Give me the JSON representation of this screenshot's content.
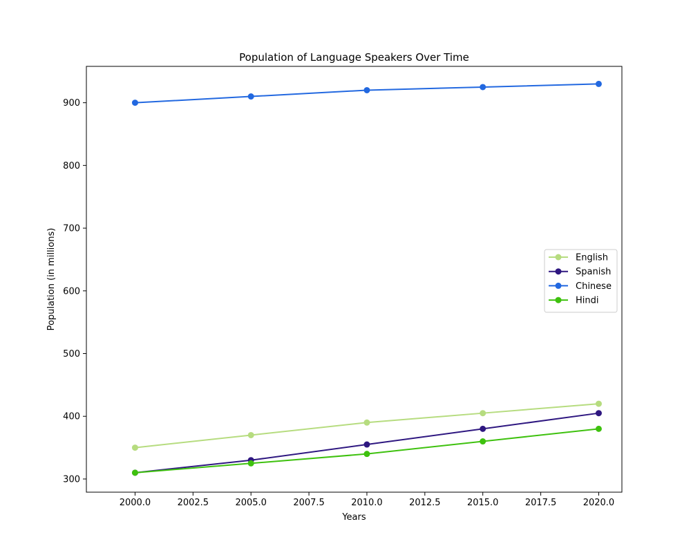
{
  "chart_data": {
    "type": "line",
    "title": "Population of Language Speakers Over Time",
    "xlabel": "Years",
    "ylabel": "Population (in millions)",
    "x": [
      2000,
      2005,
      2010,
      2015,
      2020
    ],
    "xlim": [
      1997.9,
      2021.0
    ],
    "ylim": [
      279,
      958
    ],
    "xticks": [
      "2000.0",
      "2002.5",
      "2005.0",
      "2007.5",
      "2010.0",
      "2012.5",
      "2015.0",
      "2017.5",
      "2020.0"
    ],
    "yticks": [
      "300",
      "400",
      "500",
      "600",
      "700",
      "800",
      "900"
    ],
    "grid": false,
    "legend_position": "center-right",
    "series": [
      {
        "name": "English",
        "color": "#b6dc7f",
        "values": [
          350,
          370,
          390,
          405,
          420
        ]
      },
      {
        "name": "Spanish",
        "color": "#2e1780",
        "values": [
          310,
          330,
          355,
          380,
          405
        ]
      },
      {
        "name": "Chinese",
        "color": "#2268e0",
        "values": [
          900,
          910,
          920,
          925,
          930
        ]
      },
      {
        "name": "Hindi",
        "color": "#3ec10e",
        "values": [
          310,
          325,
          340,
          360,
          380
        ]
      }
    ]
  }
}
